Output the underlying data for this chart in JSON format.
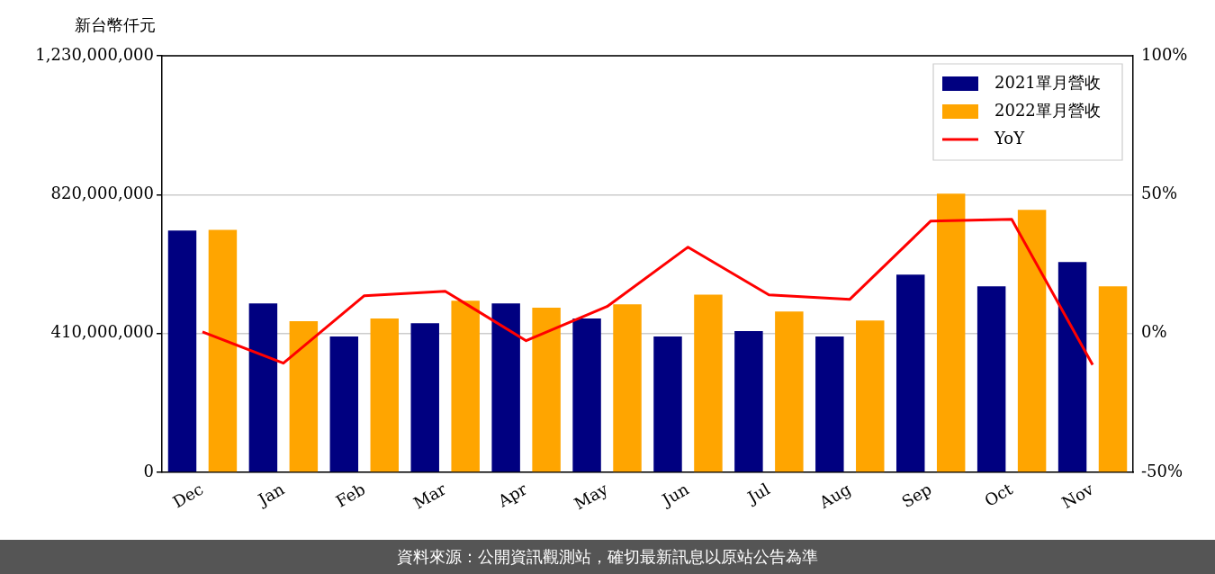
{
  "chart_data": {
    "type": "bar",
    "ylabel": "新台幣仟元",
    "categories": [
      "Dec",
      "Jan",
      "Feb",
      "Mar",
      "Apr",
      "May",
      "Jun",
      "Jul",
      "Aug",
      "Sep",
      "Oct",
      "Nov"
    ],
    "series": [
      {
        "name": "2021單月營收",
        "color": "#000080",
        "values": [
          714000000,
          499000000,
          401000000,
          440000000,
          499000000,
          454000000,
          401000000,
          417000000,
          401000000,
          584000000,
          549000000,
          621000000
        ]
      },
      {
        "name": "2022單月營收",
        "color": "#ffa500",
        "values": [
          716000000,
          446000000,
          454000000,
          507000000,
          486000000,
          496000000,
          525000000,
          475000000,
          448000000,
          823000000,
          775000000,
          549000000
        ]
      },
      {
        "name": "YoY",
        "type": "line",
        "axis": "y2",
        "color": "#ff0000",
        "values": [
          0.6,
          -10.7,
          13.6,
          15.2,
          -2.6,
          9.7,
          31.1,
          13.9,
          12.3,
          40.5,
          41.1,
          -11.3
        ]
      }
    ],
    "ylim": [
      0,
      1230000000
    ],
    "yticks": [
      {
        "value": 0,
        "label": "0"
      },
      {
        "value": 410000000,
        "label": "410,000,000"
      },
      {
        "value": 820000000,
        "label": "820,000,000"
      },
      {
        "value": 1230000000,
        "label": "1,230,000,000"
      }
    ],
    "y2lim": [
      -50,
      100
    ],
    "y2ticks": [
      {
        "value": -50,
        "label": "-50%"
      },
      {
        "value": 0,
        "label": "0%"
      },
      {
        "value": 50,
        "label": "50%"
      },
      {
        "value": 100,
        "label": "100%"
      }
    ],
    "grid": "y",
    "legend": "top right",
    "marker": "none",
    "line_style": "solid",
    "annotations": [
      "資料來源：公開資訊觀測站，確切最新訊息以原站公告為準"
    ]
  }
}
